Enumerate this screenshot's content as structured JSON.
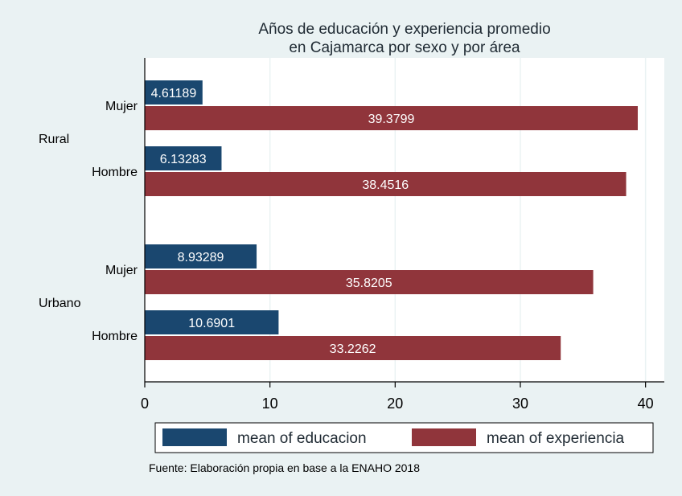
{
  "chart_data": {
    "type": "bar",
    "orientation": "horizontal",
    "title": [
      "Años de educación y experiencia promedio",
      "en Cajamarca por sexo y por área"
    ],
    "groups": [
      {
        "label": "Rural",
        "categories": [
          "Mujer",
          "Hombre"
        ]
      },
      {
        "label": "Urbano",
        "categories": [
          "Mujer",
          "Hombre"
        ]
      }
    ],
    "series": [
      {
        "name": "mean of educacion",
        "color": "#1a476f",
        "values": [
          4.61189,
          6.13283,
          8.93289,
          10.6901
        ]
      },
      {
        "name": "mean of experiencia",
        "color": "#90353b",
        "values": [
          39.3799,
          38.4516,
          35.8205,
          33.2262
        ]
      }
    ],
    "data_labels": [
      [
        "4.61189",
        "6.13283",
        "8.93289",
        "10.6901"
      ],
      [
        "39.3799",
        "38.4516",
        "35.8205",
        "33.2262"
      ]
    ],
    "xaxis": {
      "ticks": [
        0,
        10,
        20,
        30,
        40
      ],
      "range": [
        0,
        41.5
      ]
    },
    "grid": true,
    "legend_position": "bottom",
    "note": "Fuente: Elaboración propia en base a la ENAHO 2018",
    "colors": {
      "background": "#eaf2f3",
      "plot_background": "#ffffff",
      "grid": "#eaf2f3",
      "text": "#1f2a33"
    }
  }
}
